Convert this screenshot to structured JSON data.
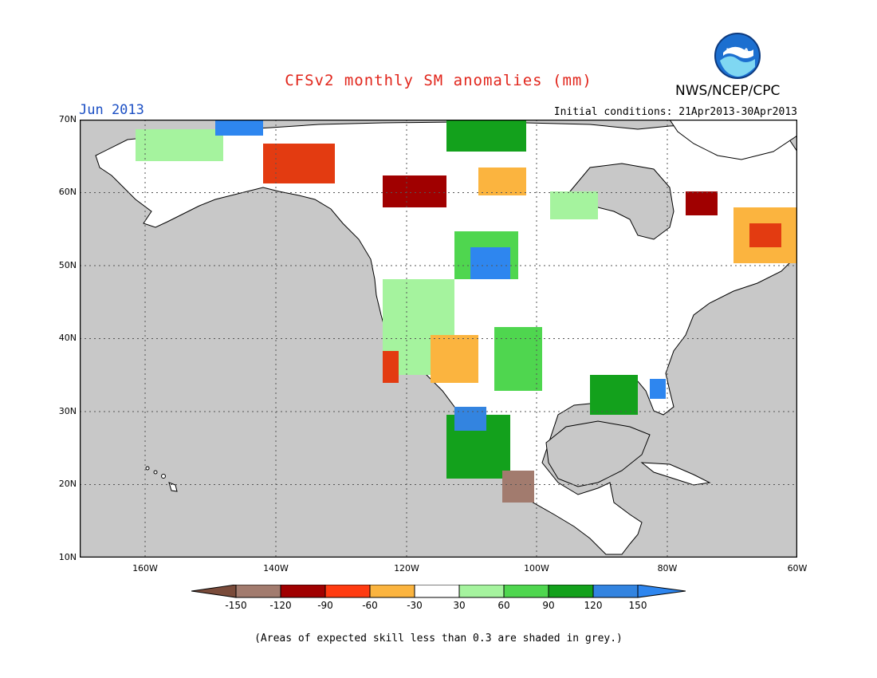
{
  "title": "CFSv2 monthly SM anomalies (mm)",
  "month_label": "Jun 2013",
  "initial_conditions": "Initial conditions: 21Apr2013-30Apr2013",
  "agency": "NWS/NCEP/CPC",
  "logo_text": "NOAA",
  "footnote": "(Areas of expected skill less than 0.3 are shaded in grey.)",
  "lat_labels": [
    "70N",
    "60N",
    "50N",
    "40N",
    "30N",
    "20N",
    "10N"
  ],
  "lon_labels": [
    "160W",
    "140W",
    "120W",
    "100W",
    "80W",
    "60W"
  ],
  "colorbar": {
    "labels": [
      "-150",
      "-120",
      "-90",
      "-60",
      "-30",
      "30",
      "60",
      "90",
      "120",
      "150"
    ],
    "colors": [
      "#7a4b3a",
      "#a27b6e",
      "#a00000",
      "#e33b11",
      "#ff6e1a",
      "#fbb43f",
      "#ffffff",
      "#a5f39e",
      "#4fd64f",
      "#13a11c",
      "#3384e0",
      "#2e86ef"
    ]
  },
  "map_colors": {
    "ocean": "#c8c8c8",
    "land": "#ffffff",
    "grey_skill": "#c6c6c6"
  }
}
